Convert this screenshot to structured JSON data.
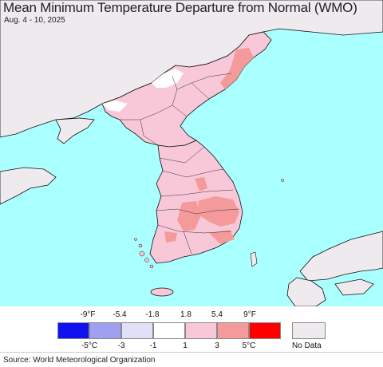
{
  "title": "Mean Minimum Temperature Departure from Normal (WMO)",
  "subtitle": "Aug. 4 - 10, 2025",
  "legend": {
    "fahrenheit_labels": [
      "-9°F",
      "-5.4",
      "-1.8",
      "1.8",
      "5.4",
      "9°F"
    ],
    "celsius_labels": [
      "-5°C",
      "-3",
      "-1",
      "1",
      "3",
      "5°C"
    ],
    "colors": [
      "#1010f0",
      "#a0a0f0",
      "#e0e0f8",
      "#ffffff",
      "#f8c8d8",
      "#f59a9a",
      "#ff0000"
    ],
    "nodata_label": "No Data",
    "nodata_color": "#efeaee"
  },
  "map_colors": {
    "sea": "#aaffff",
    "land_nodata": "#efeaee",
    "anomaly_1_3": "#f8c8d8",
    "anomaly_3_5": "#f59a9a",
    "anomaly_neutral": "#ffffff",
    "border": "#111111"
  },
  "source": "Source: World Meteorological Organization"
}
